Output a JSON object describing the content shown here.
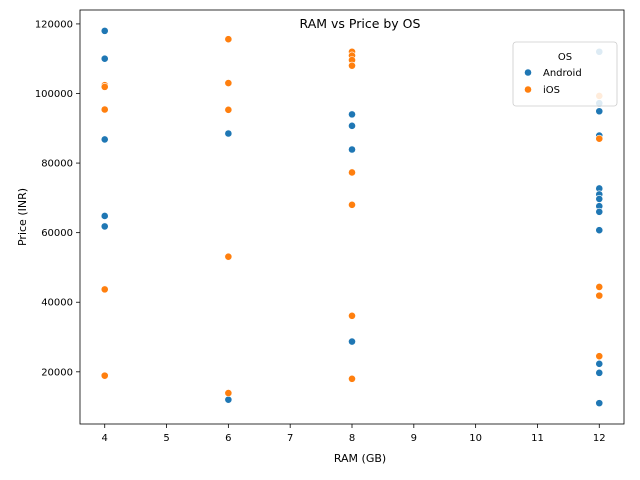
{
  "chart_data": {
    "type": "scatter",
    "title": "RAM vs Price by OS",
    "xlabel": "RAM (GB)",
    "ylabel": "Price (INR)",
    "xlim": [
      3.6,
      12.4
    ],
    "ylim": [
      5000,
      124000
    ],
    "xticks": [
      4,
      5,
      6,
      7,
      8,
      9,
      10,
      11,
      12
    ],
    "yticks": [
      20000,
      40000,
      60000,
      80000,
      100000,
      120000
    ],
    "grid": false,
    "legend": {
      "title": "OS",
      "placement": "top-right"
    },
    "series": [
      {
        "name": "Android",
        "color": "#1f77b4",
        "points": [
          [
            4,
            118000
          ],
          [
            4,
            110000
          ],
          [
            4,
            86800
          ],
          [
            4,
            64800
          ],
          [
            4,
            61800
          ],
          [
            6,
            88500
          ],
          [
            6,
            12000
          ],
          [
            8,
            94000
          ],
          [
            8,
            90700
          ],
          [
            8,
            83900
          ],
          [
            8,
            28700
          ],
          [
            12,
            112000
          ],
          [
            12,
            97200
          ],
          [
            12,
            94900
          ],
          [
            12,
            87900
          ],
          [
            12,
            72700
          ],
          [
            12,
            71000
          ],
          [
            12,
            69700
          ],
          [
            12,
            67600
          ],
          [
            12,
            66000
          ],
          [
            12,
            60700
          ],
          [
            12,
            22300
          ],
          [
            12,
            19700
          ],
          [
            12,
            11000
          ]
        ]
      },
      {
        "name": "iOS",
        "color": "#ff7f0e",
        "points": [
          [
            4,
            102400
          ],
          [
            4,
            101900
          ],
          [
            4,
            95400
          ],
          [
            4,
            43700
          ],
          [
            4,
            18900
          ],
          [
            6,
            115600
          ],
          [
            6,
            103000
          ],
          [
            6,
            95300
          ],
          [
            6,
            53100
          ],
          [
            6,
            13900
          ],
          [
            8,
            112000
          ],
          [
            8,
            110900
          ],
          [
            8,
            109600
          ],
          [
            8,
            108000
          ],
          [
            8,
            77300
          ],
          [
            8,
            68000
          ],
          [
            8,
            36100
          ],
          [
            8,
            18000
          ],
          [
            12,
            99300
          ],
          [
            12,
            87000
          ],
          [
            12,
            44400
          ],
          [
            12,
            41900
          ],
          [
            12,
            24500
          ]
        ]
      }
    ]
  }
}
